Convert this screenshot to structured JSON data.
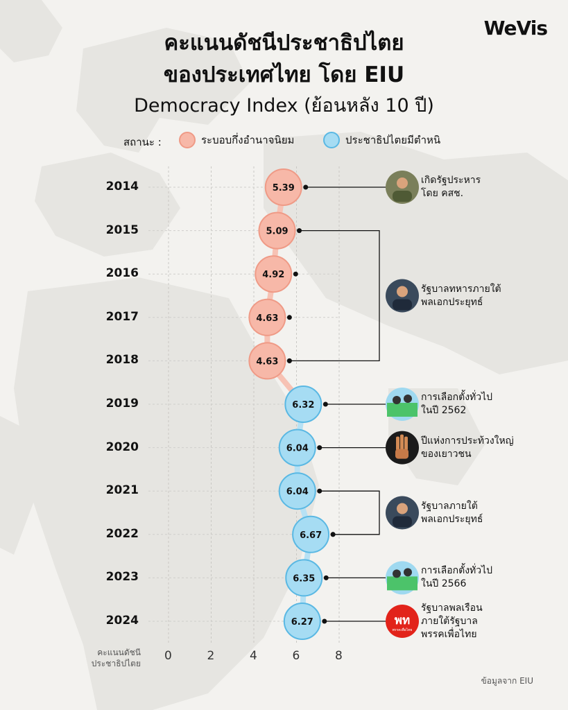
{
  "brand": "WeVis",
  "title_line1": "คะแนนดัชนีประชาธิปไตย",
  "title_line2": "ของประเทศไทย โดย EIU",
  "subtitle": "Democracy Index (ย้อนหลัง 10 ปี)",
  "legend": {
    "label": "สถานะ :",
    "items": [
      {
        "name": "ระบอบกึ่งอำนาจนิยม",
        "color": "#f7b8a8"
      },
      {
        "name": "ประชาธิปไตยมีตำหนิ",
        "color": "#a6dcf3"
      }
    ]
  },
  "colors": {
    "hybrid_fill": "#f7b8a8",
    "hybrid_stroke": "#ef9a86",
    "flawed_fill": "#a6dcf3",
    "flawed_stroke": "#5ab8e3"
  },
  "chart_data": {
    "type": "scatter",
    "ylabel": "คะแนนดัชนีประชาธิปไตย",
    "x_ticks": [
      0,
      2,
      4,
      6,
      8
    ],
    "xlim": [
      0,
      8
    ],
    "grid": true,
    "points": [
      {
        "year": "2014",
        "value": 5.39,
        "label": "5.39",
        "status": "hybrid"
      },
      {
        "year": "2015",
        "value": 5.09,
        "label": "5.09",
        "status": "hybrid"
      },
      {
        "year": "2016",
        "value": 4.92,
        "label": "4.92",
        "status": "hybrid"
      },
      {
        "year": "2017",
        "value": 4.63,
        "label": "4.63",
        "status": "hybrid"
      },
      {
        "year": "2018",
        "value": 4.63,
        "label": "4.63",
        "status": "hybrid"
      },
      {
        "year": "2019",
        "value": 6.32,
        "label": "6.32",
        "status": "flawed"
      },
      {
        "year": "2020",
        "value": 6.04,
        "label": "6.04",
        "status": "flawed"
      },
      {
        "year": "2021",
        "value": 6.04,
        "label": "6.04",
        "status": "flawed"
      },
      {
        "year": "2022",
        "value": 6.67,
        "label": "6.67",
        "status": "flawed"
      },
      {
        "year": "2023",
        "value": 6.35,
        "label": "6.35",
        "status": "flawed"
      },
      {
        "year": "2024",
        "value": 6.27,
        "label": "6.27",
        "status": "flawed"
      }
    ],
    "annotations": [
      {
        "years": [
          "2014"
        ],
        "line1": "เกิดรัฐประหาร",
        "line2": "โดย คสช.",
        "icon": "soldier-portrait-icon"
      },
      {
        "years": [
          "2015",
          "2018"
        ],
        "line1": "รัฐบาลทหารภายใต้",
        "line2": "พลเอกประยุทธ์",
        "icon": "prayut-portrait-icon"
      },
      {
        "years": [
          "2019"
        ],
        "line1": "การเลือกตั้งทั่วไป",
        "line2": "ในปี 2562",
        "icon": "election-icon"
      },
      {
        "years": [
          "2020"
        ],
        "line1": "ปีแห่งการประท้วงใหญ่",
        "line2": "ของเยาวชน",
        "icon": "three-finger-salute-icon"
      },
      {
        "years": [
          "2021",
          "2022"
        ],
        "line1": "รัฐบาลภายใต้",
        "line2": "พลเอกประยุทธ์",
        "icon": "prayut-portrait-icon"
      },
      {
        "years": [
          "2023"
        ],
        "line1": "การเลือกตั้งทั่วไป",
        "line2": "ในปี 2566",
        "icon": "election-icon"
      },
      {
        "years": [
          "2024"
        ],
        "line1": "รัฐบาลพลเรือน",
        "line2": "ภายใต้รัฐบาล",
        "line3": "พรรคเพื่อไทย",
        "icon": "pheu-thai-logo-icon",
        "logo_text": "พท",
        "logo_sub": "พรรคเพื่อไทย"
      }
    ]
  },
  "axis_label_line1": "คะแนนดัชนี",
  "axis_label_line2": "ประชาธิปไตย",
  "source": "ข้อมูลจาก EIU"
}
